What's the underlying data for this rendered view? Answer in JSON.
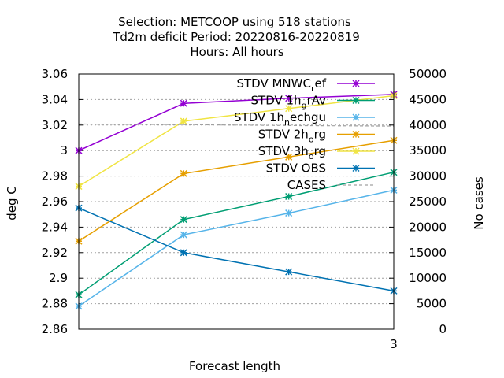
{
  "chart_data": {
    "type": "line",
    "title": [
      "Selection: METCOOP using   518 stations",
      "Td2m deficit   Period: 20220816-20220819",
      "Hours:  All hours"
    ],
    "xlabel": "Forecast length",
    "ylabel": "deg C",
    "y2label": "No cases",
    "x_ticks": [
      "3"
    ],
    "y_ticks": [
      "2.86",
      "2.88",
      "2.9",
      "2.92",
      "2.94",
      "2.96",
      "2.98",
      "3",
      "3.02",
      "3.04",
      "3.06"
    ],
    "y2_ticks": [
      "0",
      "5000",
      "10000",
      "15000",
      "20000",
      "25000",
      "30000",
      "35000",
      "40000",
      "45000",
      "50000"
    ],
    "xlim": [
      0,
      3
    ],
    "ylim": [
      2.86,
      3.06
    ],
    "y2lim": [
      0,
      50000
    ],
    "x": [
      0,
      1,
      2,
      3
    ],
    "legend_position": "top-right",
    "grid": true,
    "series": [
      {
        "name": "STDV MNWC_ref",
        "legend_label": "STDV MNWC",
        "legend_sub": "r",
        "legend_suffix": "ef",
        "color": "#9400d3",
        "values": [
          3.0,
          3.037,
          3.041,
          3.044
        ]
      },
      {
        "name": "STDV 1h_grAv",
        "legend_label": "STDV 1h",
        "legend_sub": "g",
        "legend_suffix": "rAv",
        "color": "#009e73",
        "values": [
          2.887,
          2.946,
          2.964,
          2.983
        ]
      },
      {
        "name": "STDV 1h_nechgu",
        "legend_label": "STDV 1h",
        "legend_sub": "n",
        "legend_suffix": "echgu",
        "color": "#56b4e9",
        "values": [
          2.878,
          2.934,
          2.951,
          2.969
        ]
      },
      {
        "name": "STDV 2h_org",
        "legend_label": "STDV 2h",
        "legend_sub": "o",
        "legend_suffix": "rg",
        "color": "#e69f00",
        "values": [
          2.929,
          2.982,
          2.995,
          3.008
        ]
      },
      {
        "name": "STDV 3h_org",
        "legend_label": "STDV 3h",
        "legend_sub": "o",
        "legend_suffix": "rg",
        "color": "#f0e442",
        "values": [
          2.972,
          3.023,
          3.033,
          3.043
        ]
      },
      {
        "name": "STDV OBS",
        "legend_label": "STDV OBS",
        "legend_sub": "",
        "legend_suffix": "",
        "color": "#0072b2",
        "values": [
          2.955,
          2.92,
          2.905,
          2.89
        ]
      },
      {
        "name": "CASES",
        "legend_label": "CASES",
        "legend_sub": "",
        "legend_suffix": "",
        "color": "#a0a0a0",
        "axis": "y2",
        "dashed": true,
        "values": [
          40200,
          40100,
          39900,
          39800
        ]
      }
    ]
  }
}
